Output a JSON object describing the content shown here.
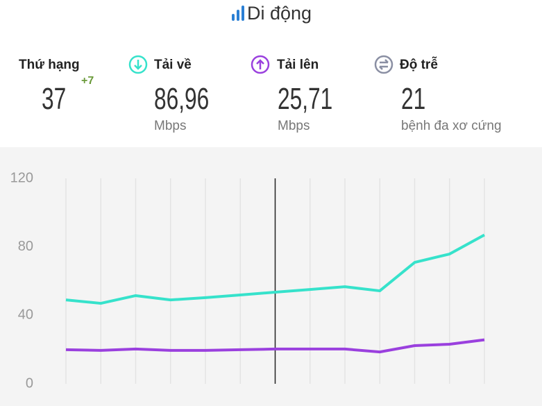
{
  "header": {
    "title": "Di động"
  },
  "rank": {
    "label": "Thứ hạng",
    "value": "37",
    "change": "+7"
  },
  "metrics": [
    {
      "label": "Tải về",
      "value": "86,96",
      "unit": "Mbps"
    },
    {
      "label": "Tải lên",
      "value": "25,71",
      "unit": "Mbps"
    },
    {
      "label": "Độ trễ",
      "value": "21",
      "unit": "bệnh đa xơ cứng"
    }
  ],
  "chart_data": {
    "type": "line",
    "categories": [
      null,
      null,
      null,
      null,
      null,
      null,
      null,
      null,
      null,
      null,
      null,
      null,
      null
    ],
    "series": [
      {
        "color": "#36e2cb",
        "values": [
          49.0,
          47.0,
          51.5,
          49.0,
          50.3,
          51.9,
          53.5,
          55.1,
          56.7,
          54.3,
          70.9,
          75.8,
          86.96
        ]
      },
      {
        "color": "#9a40de",
        "values": [
          19.9,
          19.5,
          20.3,
          19.5,
          19.5,
          19.9,
          20.3,
          20.3,
          20.3,
          18.6,
          22.3,
          23.1,
          25.71
        ]
      }
    ],
    "ylim": [
      0,
      120
    ],
    "yticks": [
      0,
      40,
      80,
      120
    ],
    "grid": true
  }
}
